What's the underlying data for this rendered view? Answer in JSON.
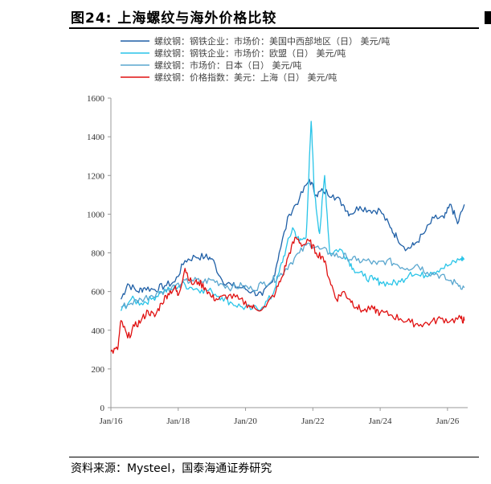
{
  "figure": {
    "title": "图24:  上海螺纹与海外价格比较",
    "source": "资料来源：Mysteel，国泰海通证券研究"
  },
  "chart_data": {
    "type": "line",
    "ylim": [
      0,
      1600
    ],
    "yticks": [
      0,
      200,
      400,
      600,
      800,
      1000,
      1200,
      1400,
      1600
    ],
    "xlim": [
      2016.0,
      2026.6
    ],
    "xticks": [
      {
        "value": 2016.0,
        "label": "Jan/16"
      },
      {
        "value": 2018.0,
        "label": "Jan/18"
      },
      {
        "value": 2020.0,
        "label": "Jan/20"
      },
      {
        "value": 2022.0,
        "label": "Jan/22"
      },
      {
        "value": 2024.0,
        "label": "Jan/24"
      },
      {
        "value": 2026.0,
        "label": "Jan/26"
      }
    ],
    "grid": false,
    "legend_position": "top-left",
    "series": [
      {
        "name": "螺纹钢：钢铁企业：市场价：美国中西部地区（日） 美元/吨",
        "color": "#1f5fa6",
        "points": [
          [
            2016.3,
            560
          ],
          [
            2016.5,
            640
          ],
          [
            2016.8,
            600
          ],
          [
            2017.0,
            620
          ],
          [
            2017.3,
            610
          ],
          [
            2017.6,
            630
          ],
          [
            2017.9,
            650
          ],
          [
            2018.2,
            760
          ],
          [
            2018.5,
            780
          ],
          [
            2018.8,
            780
          ],
          [
            2019.0,
            770
          ],
          [
            2019.3,
            660
          ],
          [
            2019.6,
            630
          ],
          [
            2019.9,
            620
          ],
          [
            2020.2,
            600
          ],
          [
            2020.5,
            580
          ],
          [
            2020.8,
            650
          ],
          [
            2021.0,
            800
          ],
          [
            2021.3,
            1000
          ],
          [
            2021.6,
            1080
          ],
          [
            2021.9,
            1180
          ],
          [
            2022.1,
            1100
          ],
          [
            2022.3,
            1120
          ],
          [
            2022.6,
            1100
          ],
          [
            2022.9,
            1050
          ],
          [
            2023.1,
            1000
          ],
          [
            2023.4,
            1040
          ],
          [
            2023.7,
            1020
          ],
          [
            2024.0,
            1020
          ],
          [
            2024.3,
            930
          ],
          [
            2024.5,
            880
          ],
          [
            2024.8,
            820
          ],
          [
            2025.0,
            840
          ],
          [
            2025.3,
            900
          ],
          [
            2025.6,
            980
          ],
          [
            2025.9,
            980
          ],
          [
            2026.1,
            1050
          ],
          [
            2026.3,
            950
          ],
          [
            2026.5,
            1050
          ]
        ]
      },
      {
        "name": "螺纹钢：钢铁企业：市场价：欧盟（日） 美元/吨",
        "color": "#29c4e8",
        "points": [
          [
            2016.3,
            500
          ],
          [
            2016.6,
            560
          ],
          [
            2016.9,
            540
          ],
          [
            2017.2,
            560
          ],
          [
            2017.5,
            600
          ],
          [
            2017.8,
            610
          ],
          [
            2018.1,
            640
          ],
          [
            2018.4,
            620
          ],
          [
            2018.7,
            610
          ],
          [
            2019.0,
            600
          ],
          [
            2019.3,
            570
          ],
          [
            2019.6,
            540
          ],
          [
            2019.9,
            520
          ],
          [
            2020.2,
            510
          ],
          [
            2020.5,
            520
          ],
          [
            2020.8,
            580
          ],
          [
            2021.0,
            700
          ],
          [
            2021.2,
            820
          ],
          [
            2021.4,
            930
          ],
          [
            2021.6,
            860
          ],
          [
            2021.8,
            880
          ],
          [
            2021.95,
            1480
          ],
          [
            2022.05,
            1100
          ],
          [
            2022.2,
            900
          ],
          [
            2022.35,
            1200
          ],
          [
            2022.5,
            800
          ],
          [
            2022.8,
            820
          ],
          [
            2023.0,
            780
          ],
          [
            2023.2,
            720
          ],
          [
            2023.5,
            680
          ],
          [
            2023.8,
            660
          ],
          [
            2024.0,
            650
          ],
          [
            2024.3,
            640
          ],
          [
            2024.6,
            650
          ],
          [
            2024.9,
            700
          ],
          [
            2025.2,
            680
          ],
          [
            2025.5,
            700
          ],
          [
            2025.8,
            720
          ],
          [
            2026.1,
            740
          ],
          [
            2026.4,
            770
          ],
          [
            2026.5,
            770
          ]
        ]
      },
      {
        "name": "螺纹钢：市场价：日本（日） 美元/吨",
        "color": "#5aa7cf",
        "points": [
          [
            2016.3,
            520
          ],
          [
            2016.6,
            540
          ],
          [
            2016.9,
            560
          ],
          [
            2017.2,
            580
          ],
          [
            2017.5,
            600
          ],
          [
            2017.8,
            620
          ],
          [
            2018.1,
            640
          ],
          [
            2018.4,
            660
          ],
          [
            2018.7,
            650
          ],
          [
            2019.0,
            660
          ],
          [
            2019.3,
            640
          ],
          [
            2019.6,
            620
          ],
          [
            2019.9,
            630
          ],
          [
            2020.2,
            610
          ],
          [
            2020.5,
            640
          ],
          [
            2020.8,
            660
          ],
          [
            2021.0,
            680
          ],
          [
            2021.3,
            740
          ],
          [
            2021.6,
            800
          ],
          [
            2021.9,
            850
          ],
          [
            2022.2,
            820
          ],
          [
            2022.5,
            800
          ],
          [
            2022.8,
            780
          ],
          [
            2023.0,
            780
          ],
          [
            2023.3,
            760
          ],
          [
            2023.6,
            760
          ],
          [
            2023.9,
            740
          ],
          [
            2024.2,
            760
          ],
          [
            2024.5,
            740
          ],
          [
            2024.8,
            720
          ],
          [
            2025.1,
            740
          ],
          [
            2025.4,
            700
          ],
          [
            2025.7,
            690
          ],
          [
            2026.0,
            660
          ],
          [
            2026.3,
            640
          ],
          [
            2026.5,
            620
          ]
        ]
      },
      {
        "name": "螺纹钢：价格指数：美元：上海（日） 美元/吨",
        "color": "#e01010",
        "points": [
          [
            2016.0,
            290
          ],
          [
            2016.2,
            300
          ],
          [
            2016.3,
            450
          ],
          [
            2016.5,
            360
          ],
          [
            2016.7,
            420
          ],
          [
            2016.9,
            450
          ],
          [
            2017.1,
            500
          ],
          [
            2017.3,
            470
          ],
          [
            2017.5,
            540
          ],
          [
            2017.7,
            590
          ],
          [
            2017.9,
            620
          ],
          [
            2018.0,
            580
          ],
          [
            2018.2,
            720
          ],
          [
            2018.4,
            640
          ],
          [
            2018.6,
            650
          ],
          [
            2018.8,
            620
          ],
          [
            2019.0,
            570
          ],
          [
            2019.2,
            560
          ],
          [
            2019.5,
            580
          ],
          [
            2019.8,
            560
          ],
          [
            2020.1,
            530
          ],
          [
            2020.3,
            510
          ],
          [
            2020.6,
            520
          ],
          [
            2020.9,
            600
          ],
          [
            2021.1,
            680
          ],
          [
            2021.3,
            800
          ],
          [
            2021.5,
            880
          ],
          [
            2021.7,
            840
          ],
          [
            2021.9,
            860
          ],
          [
            2022.1,
            800
          ],
          [
            2022.3,
            780
          ],
          [
            2022.5,
            660
          ],
          [
            2022.7,
            560
          ],
          [
            2022.9,
            600
          ],
          [
            2023.1,
            560
          ],
          [
            2023.3,
            520
          ],
          [
            2023.5,
            500
          ],
          [
            2023.8,
            510
          ],
          [
            2024.0,
            490
          ],
          [
            2024.3,
            480
          ],
          [
            2024.6,
            460
          ],
          [
            2024.9,
            440
          ],
          [
            2025.2,
            430
          ],
          [
            2025.5,
            440
          ],
          [
            2025.8,
            460
          ],
          [
            2026.1,
            450
          ],
          [
            2026.4,
            460
          ],
          [
            2026.5,
            450
          ]
        ]
      }
    ]
  }
}
